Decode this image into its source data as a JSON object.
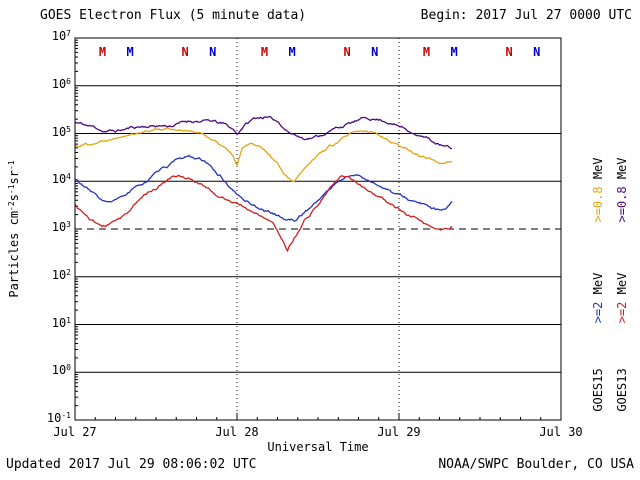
{
  "meta": {
    "title": "GOES Electron Flux (5 minute data)",
    "begin_label": "Begin: 2017 Jul 27 0000 UTC",
    "updated_label": "Updated 2017 Jul 29 08:06:02 UTC",
    "credit_label": "NOAA/SWPC Boulder, CO USA"
  },
  "chart_data": {
    "type": "line",
    "title": "GOES Electron Flux (5 minute data)",
    "xlabel": "Universal Time",
    "ylabel": "Particles cm-2s-1sr-1",
    "ylabel_parts": [
      [
        "Particles cm",
        0
      ],
      [
        "-2",
        1
      ],
      [
        "s",
        0
      ],
      [
        "-1",
        1
      ],
      [
        "sr",
        0
      ],
      [
        "-1",
        1
      ]
    ],
    "x_ticks": [
      {
        "day": 0,
        "label": "Jul 27"
      },
      {
        "day": 1,
        "label": "Jul 28"
      },
      {
        "day": 2,
        "label": "Jul 29"
      },
      {
        "day": 3,
        "label": "Jul 30"
      }
    ],
    "x_range_days": [
      0,
      3
    ],
    "y_exponent_range": [
      -1,
      7
    ],
    "y_tick_exponents": [
      7,
      6,
      5,
      4,
      3,
      2,
      1,
      0,
      -1
    ],
    "grid": "solid horizontal line each decade",
    "threshold_flux": 1000,
    "day_boundary_lines_days": [
      1,
      2
    ],
    "series": [
      {
        "name": "GOES13 >=0.8 MeV",
        "color": "#4b0a82",
        "points": [
          [
            0,
            170000.0
          ],
          [
            0.08,
            140000.0
          ],
          [
            0.17,
            115000.0
          ],
          [
            0.25,
            110000.0
          ],
          [
            0.33,
            125000.0
          ],
          [
            0.42,
            140000.0
          ],
          [
            0.5,
            150000.0
          ],
          [
            0.58,
            155000.0
          ],
          [
            0.67,
            180000.0
          ],
          [
            0.75,
            200000.0
          ],
          [
            0.83,
            190000.0
          ],
          [
            0.92,
            150000.0
          ],
          [
            0.98,
            110000.0
          ],
          [
            1.0,
            90000.0
          ],
          [
            1.04,
            140000.0
          ],
          [
            1.1,
            190000.0
          ],
          [
            1.17,
            220000.0
          ],
          [
            1.25,
            170000.0
          ],
          [
            1.33,
            110000.0
          ],
          [
            1.42,
            85000.0
          ],
          [
            1.5,
            95000.0
          ],
          [
            1.58,
            120000.0
          ],
          [
            1.67,
            160000.0
          ],
          [
            1.75,
            185000.0
          ],
          [
            1.83,
            200000.0
          ],
          [
            1.92,
            190000.0
          ],
          [
            2.0,
            150000.0
          ],
          [
            2.08,
            115000.0
          ],
          [
            2.17,
            85000.0
          ],
          [
            2.25,
            60000.0
          ],
          [
            2.33,
            45000.0
          ]
        ]
      },
      {
        "name": "GOES15 >=0.8 MeV",
        "color": "#e2a411",
        "points": [
          [
            0,
            55000.0
          ],
          [
            0.08,
            65000.0
          ],
          [
            0.17,
            75000.0
          ],
          [
            0.25,
            90000.0
          ],
          [
            0.33,
            105000.0
          ],
          [
            0.42,
            120000.0
          ],
          [
            0.5,
            135000.0
          ],
          [
            0.58,
            140000.0
          ],
          [
            0.67,
            130000.0
          ],
          [
            0.75,
            110000.0
          ],
          [
            0.83,
            85000.0
          ],
          [
            0.92,
            60000.0
          ],
          [
            0.97,
            35000.0
          ],
          [
            1.0,
            22000.0
          ],
          [
            1.03,
            45000.0
          ],
          [
            1.08,
            60000.0
          ],
          [
            1.15,
            45000.0
          ],
          [
            1.22,
            28000.0
          ],
          [
            1.3,
            14000.0
          ],
          [
            1.35,
            11000.0
          ],
          [
            1.42,
            22000.0
          ],
          [
            1.5,
            40000.0
          ],
          [
            1.58,
            60000.0
          ],
          [
            1.67,
            85000.0
          ],
          [
            1.75,
            100000.0
          ],
          [
            1.83,
            95000.0
          ],
          [
            1.92,
            80000.0
          ],
          [
            2.0,
            60000.0
          ],
          [
            2.08,
            45000.0
          ],
          [
            2.17,
            32000.0
          ],
          [
            2.25,
            26000.0
          ],
          [
            2.33,
            30000.0
          ]
        ]
      },
      {
        "name": "GOES15 >=2 MeV",
        "color": "#2431c8",
        "points": [
          [
            0,
            11000.0
          ],
          [
            0.05,
            8000.0
          ],
          [
            0.1,
            5500.0
          ],
          [
            0.17,
            3800.0
          ],
          [
            0.22,
            3200.0
          ],
          [
            0.3,
            4500.0
          ],
          [
            0.38,
            7000.0
          ],
          [
            0.46,
            11000.0
          ],
          [
            0.54,
            17000.0
          ],
          [
            0.6,
            23000.0
          ],
          [
            0.65,
            28000.0
          ],
          [
            0.7,
            31000.0
          ],
          [
            0.75,
            29000.0
          ],
          [
            0.8,
            23000.0
          ],
          [
            0.85,
            17000.0
          ],
          [
            0.9,
            12000.0
          ],
          [
            0.95,
            8000.0
          ],
          [
            1.0,
            5000.0
          ],
          [
            1.05,
            3800.0
          ],
          [
            1.1,
            3200.0
          ],
          [
            1.15,
            2700.0
          ],
          [
            1.22,
            2200.0
          ],
          [
            1.3,
            1700.0
          ],
          [
            1.36,
            1600.0
          ],
          [
            1.42,
            2500.0
          ],
          [
            1.5,
            4500.0
          ],
          [
            1.58,
            8000.0
          ],
          [
            1.65,
            12000.0
          ],
          [
            1.7,
            15000.0
          ],
          [
            1.75,
            14000.0
          ],
          [
            1.83,
            11000.0
          ],
          [
            1.92,
            7500.0
          ],
          [
            2.0,
            5000.0
          ],
          [
            2.08,
            3800.0
          ],
          [
            2.17,
            2800.0
          ],
          [
            2.25,
            2200.0
          ],
          [
            2.29,
            2300.0
          ],
          [
            2.33,
            3400.0
          ]
        ]
      },
      {
        "name": "GOES13 >=2 MeV",
        "color": "#cf2020",
        "points": [
          [
            0,
            3200.0
          ],
          [
            0.05,
            2200.0
          ],
          [
            0.1,
            1500.0
          ],
          [
            0.17,
            1100.0
          ],
          [
            0.22,
            1200.0
          ],
          [
            0.3,
            2000.0
          ],
          [
            0.38,
            3500.0
          ],
          [
            0.46,
            6000.0
          ],
          [
            0.54,
            9000.0
          ],
          [
            0.6,
            11500.0
          ],
          [
            0.65,
            13000.0
          ],
          [
            0.7,
            11500.0
          ],
          [
            0.75,
            9500.0
          ],
          [
            0.83,
            7000.0
          ],
          [
            0.9,
            5000.0
          ],
          [
            1.0,
            3200.0
          ],
          [
            1.08,
            2400.0
          ],
          [
            1.15,
            1800.0
          ],
          [
            1.22,
            1200.0
          ],
          [
            1.28,
            550.0
          ],
          [
            1.31,
            320.0
          ],
          [
            1.35,
            600.0
          ],
          [
            1.42,
            1600.0
          ],
          [
            1.5,
            3500.0
          ],
          [
            1.55,
            6000.0
          ],
          [
            1.6,
            9000.0
          ],
          [
            1.65,
            12500.0
          ],
          [
            1.7,
            11000.0
          ],
          [
            1.75,
            9000.0
          ],
          [
            1.83,
            6500.0
          ],
          [
            1.92,
            4000.0
          ],
          [
            2.0,
            2600.0
          ],
          [
            2.08,
            1700.0
          ],
          [
            2.17,
            1100.0
          ],
          [
            2.22,
            900.0
          ],
          [
            2.27,
            850.0
          ],
          [
            2.33,
            1100.0
          ]
        ]
      }
    ],
    "noon_midnight_markers": [
      {
        "day": 0.17,
        "letter": "M",
        "color": "#cc0000"
      },
      {
        "day": 0.34,
        "letter": "M",
        "color": "#0000cc"
      },
      {
        "day": 0.68,
        "letter": "N",
        "color": "#cc0000"
      },
      {
        "day": 0.85,
        "letter": "N",
        "color": "#0000cc"
      },
      {
        "day": 1.17,
        "letter": "M",
        "color": "#cc0000"
      },
      {
        "day": 1.34,
        "letter": "M",
        "color": "#0000cc"
      },
      {
        "day": 1.68,
        "letter": "N",
        "color": "#cc0000"
      },
      {
        "day": 1.85,
        "letter": "N",
        "color": "#0000cc"
      },
      {
        "day": 2.17,
        "letter": "M",
        "color": "#cc0000"
      },
      {
        "day": 2.34,
        "letter": "M",
        "color": "#0000cc"
      },
      {
        "day": 2.68,
        "letter": "N",
        "color": "#cc0000"
      },
      {
        "day": 2.85,
        "letter": "N",
        "color": "#0000cc"
      }
    ]
  },
  "legend": {
    "unit": "MeV",
    "columns": [
      {
        "satellite": "GOES15",
        "entries": [
          {
            "text": ">=0.8",
            "color": "#e2a411"
          },
          {
            "text": ">=2",
            "color": "#2431c8"
          }
        ]
      },
      {
        "satellite": "GOES13",
        "entries": [
          {
            "text": ">=0.8",
            "color": "#4b0a82"
          },
          {
            "text": ">=2",
            "color": "#cf2020"
          }
        ]
      }
    ]
  }
}
